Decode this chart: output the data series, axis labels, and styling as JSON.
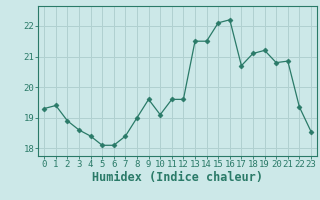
{
  "x": [
    0,
    1,
    2,
    3,
    4,
    5,
    6,
    7,
    8,
    9,
    10,
    11,
    12,
    13,
    14,
    15,
    16,
    17,
    18,
    19,
    20,
    21,
    22,
    23
  ],
  "y": [
    19.3,
    19.4,
    18.9,
    18.6,
    18.4,
    18.1,
    18.1,
    18.4,
    19.0,
    19.6,
    19.1,
    19.6,
    19.6,
    21.5,
    21.5,
    22.1,
    22.2,
    20.7,
    21.1,
    21.2,
    20.8,
    20.85,
    19.35,
    18.55
  ],
  "line_color": "#2a7a68",
  "marker": "D",
  "marker_size": 2.5,
  "bg_color": "#cce8e8",
  "grid_color": "#b0d0d0",
  "xlabel": "Humidex (Indice chaleur)",
  "ylim": [
    17.75,
    22.65
  ],
  "xlim": [
    -0.5,
    23.5
  ],
  "yticks": [
    18,
    19,
    20,
    21,
    22
  ],
  "xticks": [
    0,
    1,
    2,
    3,
    4,
    5,
    6,
    7,
    8,
    9,
    10,
    11,
    12,
    13,
    14,
    15,
    16,
    17,
    18,
    19,
    20,
    21,
    22,
    23
  ],
  "tick_label_fontsize": 6.5,
  "xlabel_fontsize": 8.5,
  "axis_color": "#2a7a68"
}
